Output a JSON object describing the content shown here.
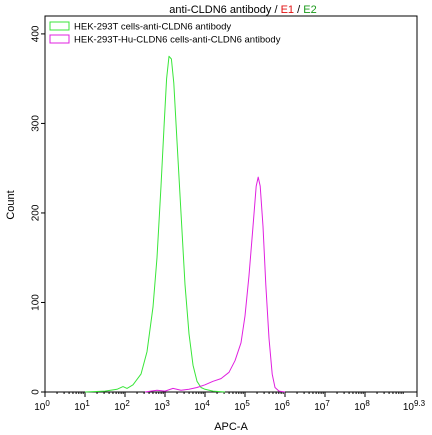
{
  "chart_data": {
    "type": "line",
    "title": "anti-CLDN6 antibody / E1 / E2",
    "title_parts": [
      {
        "text": "anti-CLDN6 antibody",
        "color": "#000000"
      },
      {
        "text": " / ",
        "color": "#000000"
      },
      {
        "text": "E1",
        "color": "#e01010"
      },
      {
        "text": " / ",
        "color": "#000000"
      },
      {
        "text": "E2",
        "color": "#1a9a1a"
      }
    ],
    "xlabel": "APC-A",
    "ylabel": "Count",
    "x_scale": "log",
    "xlim_exponent": [
      0,
      9.3
    ],
    "ylim": [
      0,
      420
    ],
    "grid": false,
    "legend_position": "top-left",
    "x_ticks": [
      {
        "exp": 0,
        "base": "10",
        "sup": "0"
      },
      {
        "exp": 1,
        "base": "10",
        "sup": "1"
      },
      {
        "exp": 2,
        "base": "10",
        "sup": "2"
      },
      {
        "exp": 3,
        "base": "10",
        "sup": "3"
      },
      {
        "exp": 4,
        "base": "10",
        "sup": "4"
      },
      {
        "exp": 5,
        "base": "10",
        "sup": "5"
      },
      {
        "exp": 6,
        "base": "10",
        "sup": "6"
      },
      {
        "exp": 7,
        "base": "10",
        "sup": "7"
      },
      {
        "exp": 8,
        "base": "10",
        "sup": "8"
      },
      {
        "exp": 9.3,
        "base": "10",
        "sup": "9.3"
      }
    ],
    "y_ticks": [
      0,
      100,
      200,
      300,
      400
    ],
    "series": [
      {
        "name": "HEK-293T cells-anti-CLDN6 antibody",
        "color": "#39e639",
        "points": [
          [
            1.0,
            0
          ],
          [
            1.5,
            1
          ],
          [
            1.8,
            3
          ],
          [
            1.95,
            6
          ],
          [
            2.05,
            4
          ],
          [
            2.2,
            8
          ],
          [
            2.4,
            20
          ],
          [
            2.55,
            45
          ],
          [
            2.7,
            95
          ],
          [
            2.8,
            150
          ],
          [
            2.9,
            230
          ],
          [
            2.98,
            300
          ],
          [
            3.04,
            350
          ],
          [
            3.1,
            375
          ],
          [
            3.16,
            372
          ],
          [
            3.22,
            345
          ],
          [
            3.3,
            280
          ],
          [
            3.4,
            200
          ],
          [
            3.5,
            120
          ],
          [
            3.6,
            65
          ],
          [
            3.7,
            30
          ],
          [
            3.8,
            12
          ],
          [
            3.9,
            5
          ],
          [
            4.0,
            3
          ],
          [
            4.2,
            1
          ],
          [
            4.5,
            0
          ]
        ]
      },
      {
        "name": "HEK-293T-Hu-CLDN6 cells-anti-CLDN6 antibody",
        "color": "#e020e0",
        "points": [
          [
            2.5,
            0
          ],
          [
            2.8,
            2
          ],
          [
            3.0,
            1
          ],
          [
            3.2,
            4
          ],
          [
            3.4,
            2
          ],
          [
            3.6,
            3
          ],
          [
            3.8,
            5
          ],
          [
            4.0,
            8
          ],
          [
            4.2,
            12
          ],
          [
            4.4,
            15
          ],
          [
            4.6,
            22
          ],
          [
            4.75,
            35
          ],
          [
            4.9,
            55
          ],
          [
            5.0,
            85
          ],
          [
            5.1,
            130
          ],
          [
            5.2,
            185
          ],
          [
            5.28,
            230
          ],
          [
            5.33,
            240
          ],
          [
            5.38,
            230
          ],
          [
            5.45,
            185
          ],
          [
            5.52,
            120
          ],
          [
            5.6,
            60
          ],
          [
            5.68,
            20
          ],
          [
            5.75,
            5
          ],
          [
            5.85,
            1
          ],
          [
            6.0,
            0
          ]
        ]
      }
    ]
  }
}
